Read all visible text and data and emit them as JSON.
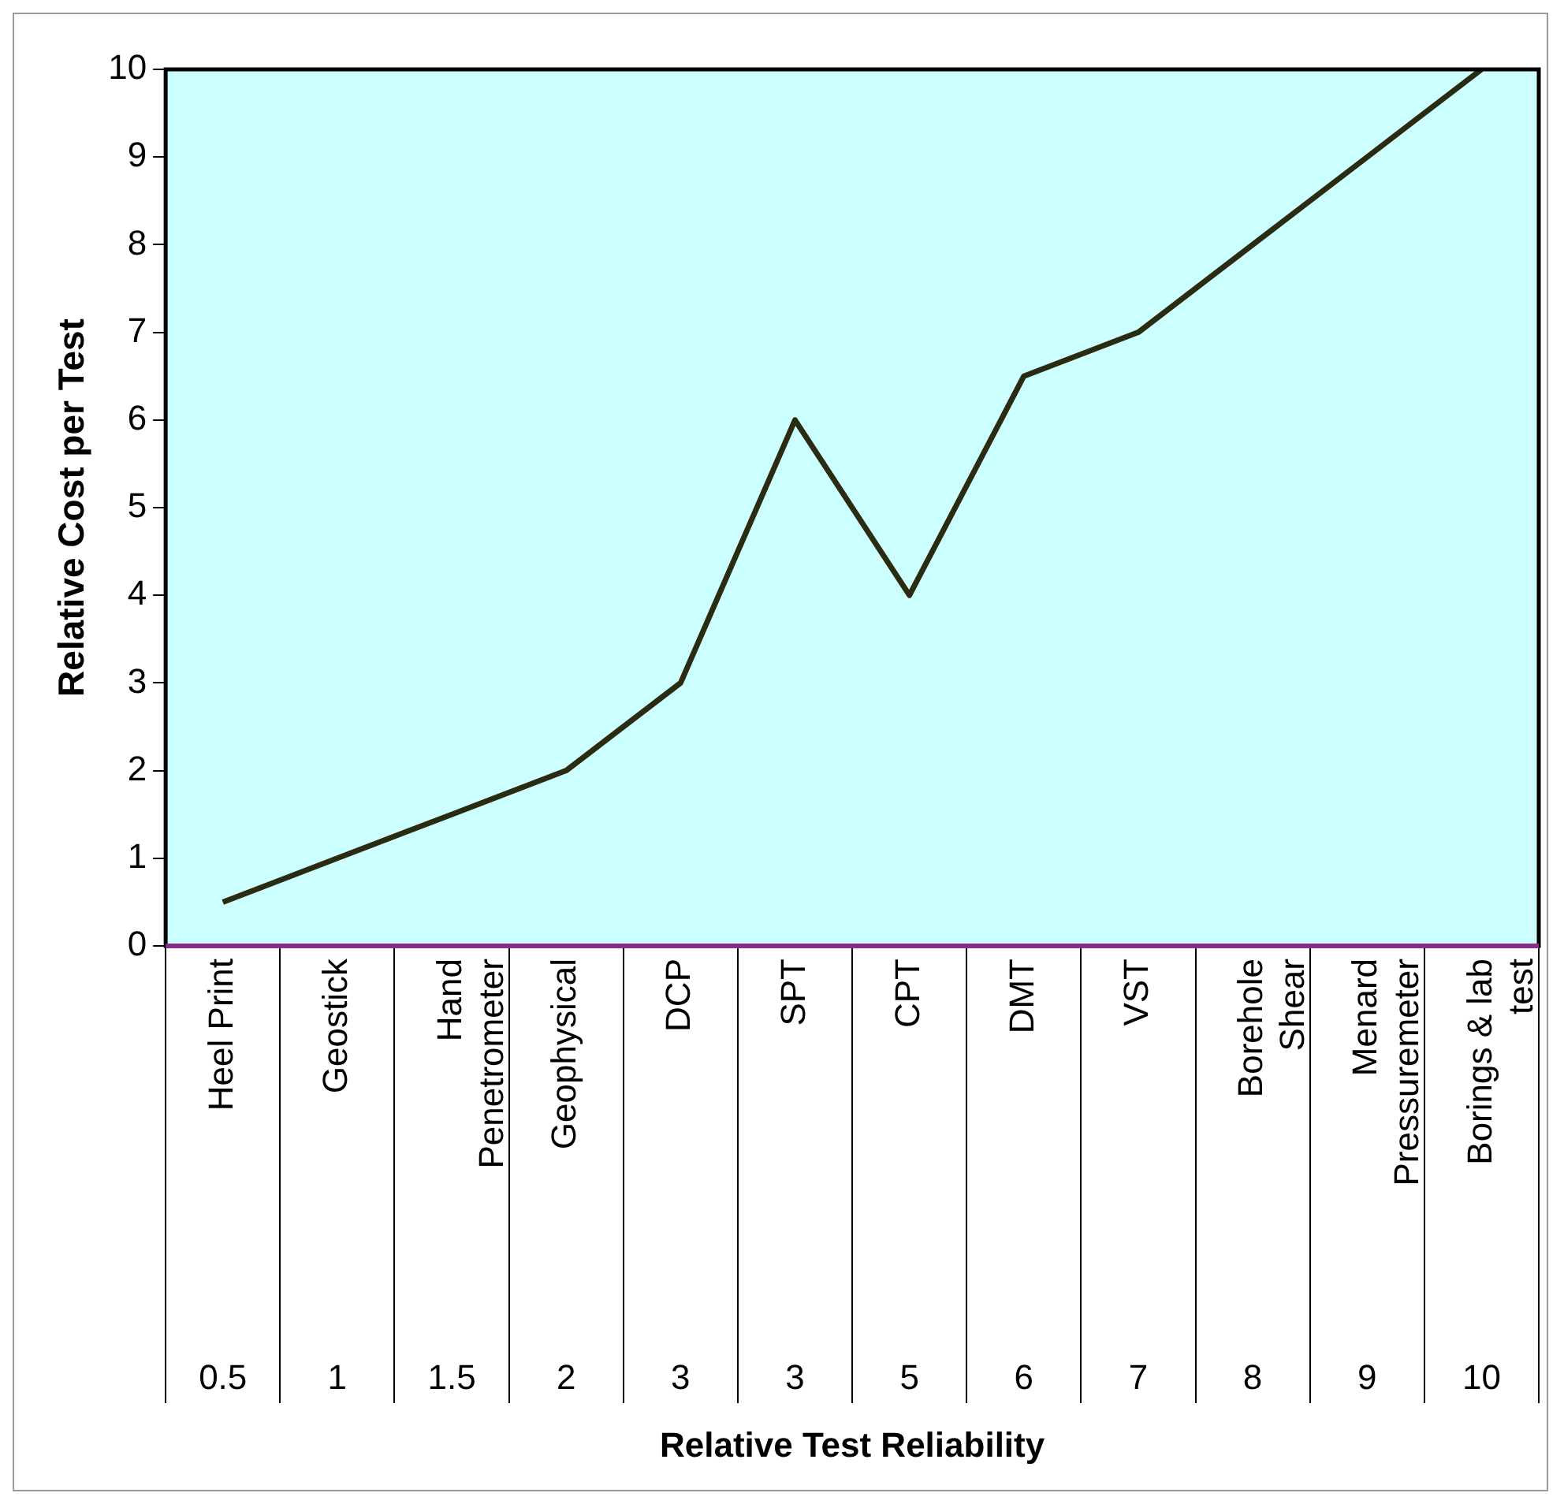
{
  "chart_data": {
    "type": "line",
    "ylabel": "Relative Cost per Test",
    "categories": [
      "Heel Print",
      "Geostick",
      "Hand Penetrometer",
      "Geophysical",
      "DCP",
      "SPT",
      "CPT",
      "DMT",
      "VST",
      "Borehole Shear",
      "Menard Pressuremeter",
      "Borings & lab test"
    ],
    "series": [
      {
        "color": "#2b2b12",
        "values": [
          0.5,
          1,
          1.5,
          2,
          3,
          6,
          4,
          6.5,
          7,
          8,
          9,
          10
        ]
      }
    ],
    "ylim": [
      0,
      10
    ],
    "yticks": [
      0,
      1,
      2,
      3,
      4,
      5,
      6,
      7,
      8,
      9,
      10
    ],
    "annotations": [
      "0.5",
      "1",
      "1.5",
      "2",
      "3",
      "3",
      "5",
      "6",
      "7",
      "8",
      "9",
      "10",
      "Relative Test Reliability"
    ],
    "grid": false,
    "legend": false,
    "marker": "none",
    "line_style": "solid"
  }
}
